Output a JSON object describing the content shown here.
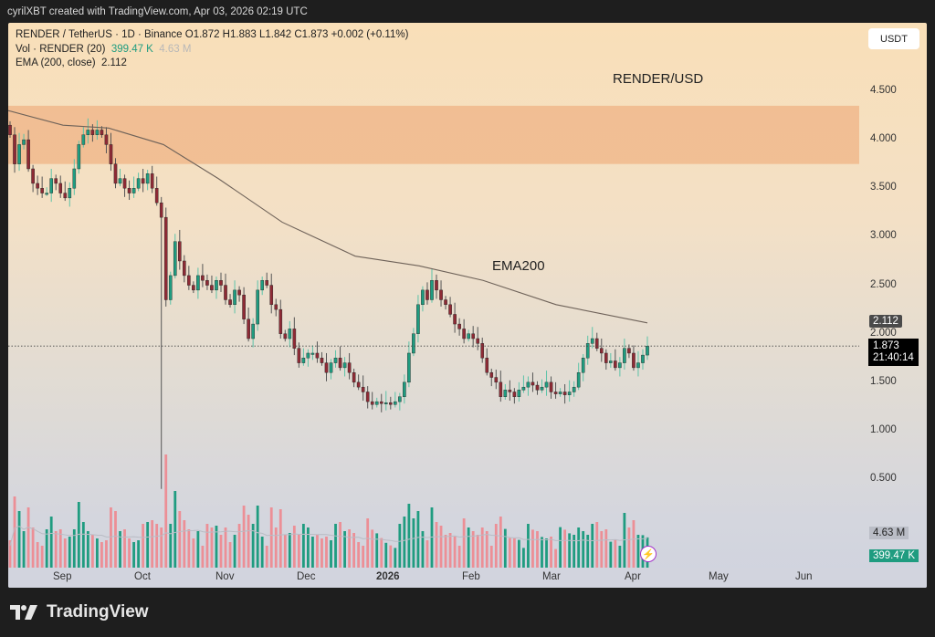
{
  "credit": "cyrilXBT created with TradingView.com, Apr 03, 2026 02:19 UTC",
  "legend": {
    "symbol_line": "RENDER / TetherUS · 1D · Binance  O1.872  H1.883  L1.842  C1.873  +0.002 (+0.11%)",
    "vol_label": "Vol · RENDER (20)",
    "vol_value": "399.47 K",
    "vol_ma": "4.63 M",
    "ema_label": "EMA (200, close)",
    "ema_value": "2.112"
  },
  "currency_button": "USDT",
  "annotations": {
    "title": "RENDER/USD",
    "ema": "EMA200"
  },
  "price_tags": {
    "ema": "2.112",
    "last": "1.873",
    "countdown": "21:40:14",
    "vol_ma": "4.63 M",
    "vol": "399.47 K"
  },
  "brand": "TradingView",
  "colors": {
    "up": "#1f9c80",
    "down": "#8e2a35",
    "up_vol": "#1f9c80",
    "down_vol": "#ec8f96",
    "zone": "#f0b98c",
    "ema": "#6e6259"
  },
  "chart_data": {
    "type": "candlestick",
    "title": "RENDER / TetherUS · 1D · Binance",
    "ylabel": "USDT",
    "y_ticks": [
      "4.500",
      "4.000",
      "3.500",
      "3.000",
      "2.500",
      "2.000",
      "1.500",
      "1.000",
      "0.500"
    ],
    "x_ticks": [
      "Sep",
      "Oct",
      "Nov",
      "Dec",
      "2026",
      "Feb",
      "Mar",
      "Apr",
      "May",
      "Jun"
    ],
    "ylim": [
      0,
      4.7
    ],
    "resistance_zone": [
      3.75,
      4.35
    ],
    "last_close": 1.873,
    "ema200_last": 2.112,
    "close_path": [
      4.05,
      3.75,
      3.95,
      4.0,
      3.7,
      3.55,
      3.5,
      3.45,
      3.45,
      3.6,
      3.55,
      3.45,
      3.4,
      3.5,
      3.7,
      3.95,
      4.05,
      4.1,
      4.05,
      4.1,
      4.05,
      3.95,
      3.75,
      3.55,
      3.6,
      3.5,
      3.45,
      3.5,
      3.6,
      3.55,
      3.65,
      3.5,
      3.35,
      3.2,
      2.35,
      2.6,
      2.95,
      2.75,
      2.6,
      2.5,
      2.45,
      2.6,
      2.55,
      2.5,
      2.45,
      2.55,
      2.5,
      2.35,
      2.3,
      2.45,
      2.4,
      2.15,
      1.95,
      2.1,
      2.45,
      2.55,
      2.5,
      2.3,
      2.25,
      2.0,
      1.95,
      2.05,
      1.85,
      1.7,
      1.75,
      1.8,
      1.8,
      1.75,
      1.7,
      1.6,
      1.7,
      1.75,
      1.65,
      1.7,
      1.6,
      1.5,
      1.45,
      1.4,
      1.3,
      1.27,
      1.3,
      1.28,
      1.29,
      1.27,
      1.3,
      1.35,
      1.5,
      1.8,
      2.0,
      2.3,
      2.45,
      2.35,
      2.55,
      2.45,
      2.35,
      2.3,
      2.2,
      2.1,
      2.05,
      1.95,
      2.0,
      1.95,
      1.9,
      1.75,
      1.6,
      1.55,
      1.5,
      1.35,
      1.42,
      1.4,
      1.35,
      1.42,
      1.45,
      1.5,
      1.47,
      1.42,
      1.45,
      1.5,
      1.4,
      1.38,
      1.4,
      1.37,
      1.4,
      1.45,
      1.6,
      1.75,
      1.9,
      1.95,
      1.85,
      1.8,
      1.7,
      1.72,
      1.65,
      1.7,
      1.85,
      1.8,
      1.65,
      1.7,
      1.78,
      1.873
    ],
    "volume_note": "Volume bars (0–~1.0M scale), 20-day MA 4.63M, last 399.47K; spikes on Oct 10 crash, early Nov, early Jan and mid-Mar"
  }
}
